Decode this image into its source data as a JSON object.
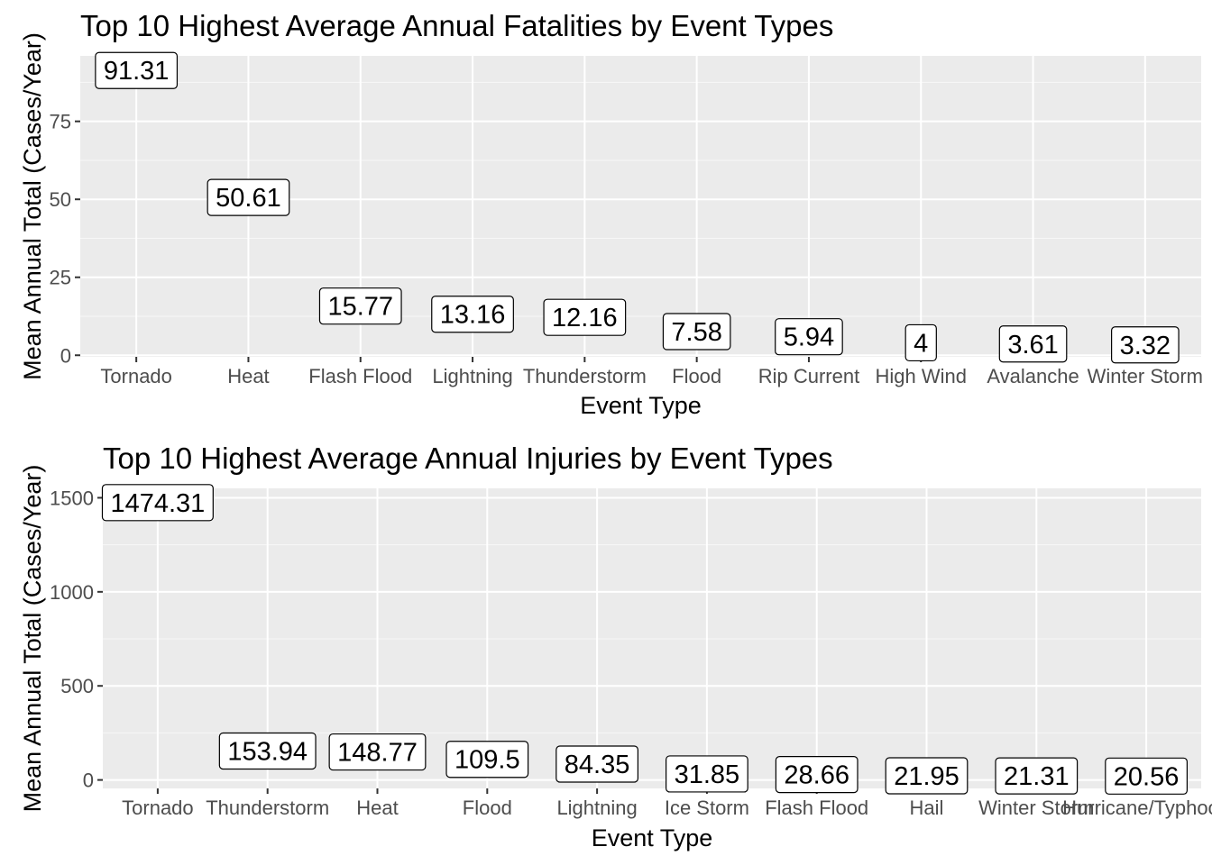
{
  "chart_data": [
    {
      "type": "bar",
      "title": "Top 10 Highest Average Annual Fatalities by Event Types",
      "xlabel": "Event Type",
      "ylabel": "Mean Annual Total (Cases/Year)",
      "categories": [
        "Tornado",
        "Heat",
        "Flash Flood",
        "Lightning",
        "Thunderstorm",
        "Flood",
        "Rip Current",
        "High Wind",
        "Avalanche",
        "Winter Storm"
      ],
      "values": [
        91.31,
        50.61,
        15.77,
        13.16,
        12.16,
        7.58,
        5.94,
        4,
        3.61,
        3.32
      ],
      "value_labels": [
        "91.31",
        "50.61",
        "15.77",
        "13.16",
        "12.16",
        "7.58",
        "5.94",
        "4",
        "3.61",
        "3.32"
      ],
      "yticks": [
        0,
        25,
        50,
        75
      ],
      "ytick_labels": [
        "0",
        "25",
        "50",
        "75"
      ],
      "ylim": [
        -0.5,
        96
      ],
      "grid": true,
      "colors": {
        "panel": "#ebebeb",
        "grid": "#ffffff"
      }
    },
    {
      "type": "bar",
      "title": "Top 10 Highest Average Annual Injuries by Event Types",
      "xlabel": "Event Type",
      "ylabel": "Mean Annual Total (Cases/Year)",
      "categories": [
        "Tornado",
        "Thunderstorm",
        "Heat",
        "Flood",
        "Lightning",
        "Ice Storm",
        "Flash Flood",
        "Hail",
        "Winter Storm",
        "Hurricane/Typhoon"
      ],
      "values": [
        1474.31,
        153.94,
        148.77,
        109.5,
        84.35,
        31.85,
        28.66,
        21.95,
        21.31,
        20.56
      ],
      "value_labels": [
        "1474.31",
        "153.94",
        "148.77",
        "109.5",
        "84.35",
        "31.85",
        "28.66",
        "21.95",
        "21.31",
        "20.56"
      ],
      "yticks": [
        0,
        500,
        1000,
        1500
      ],
      "ytick_labels": [
        "0",
        "500",
        "1000",
        "1500"
      ],
      "ylim": [
        -45,
        1550
      ],
      "grid": true,
      "colors": {
        "panel": "#ebebeb",
        "grid": "#ffffff"
      }
    }
  ]
}
